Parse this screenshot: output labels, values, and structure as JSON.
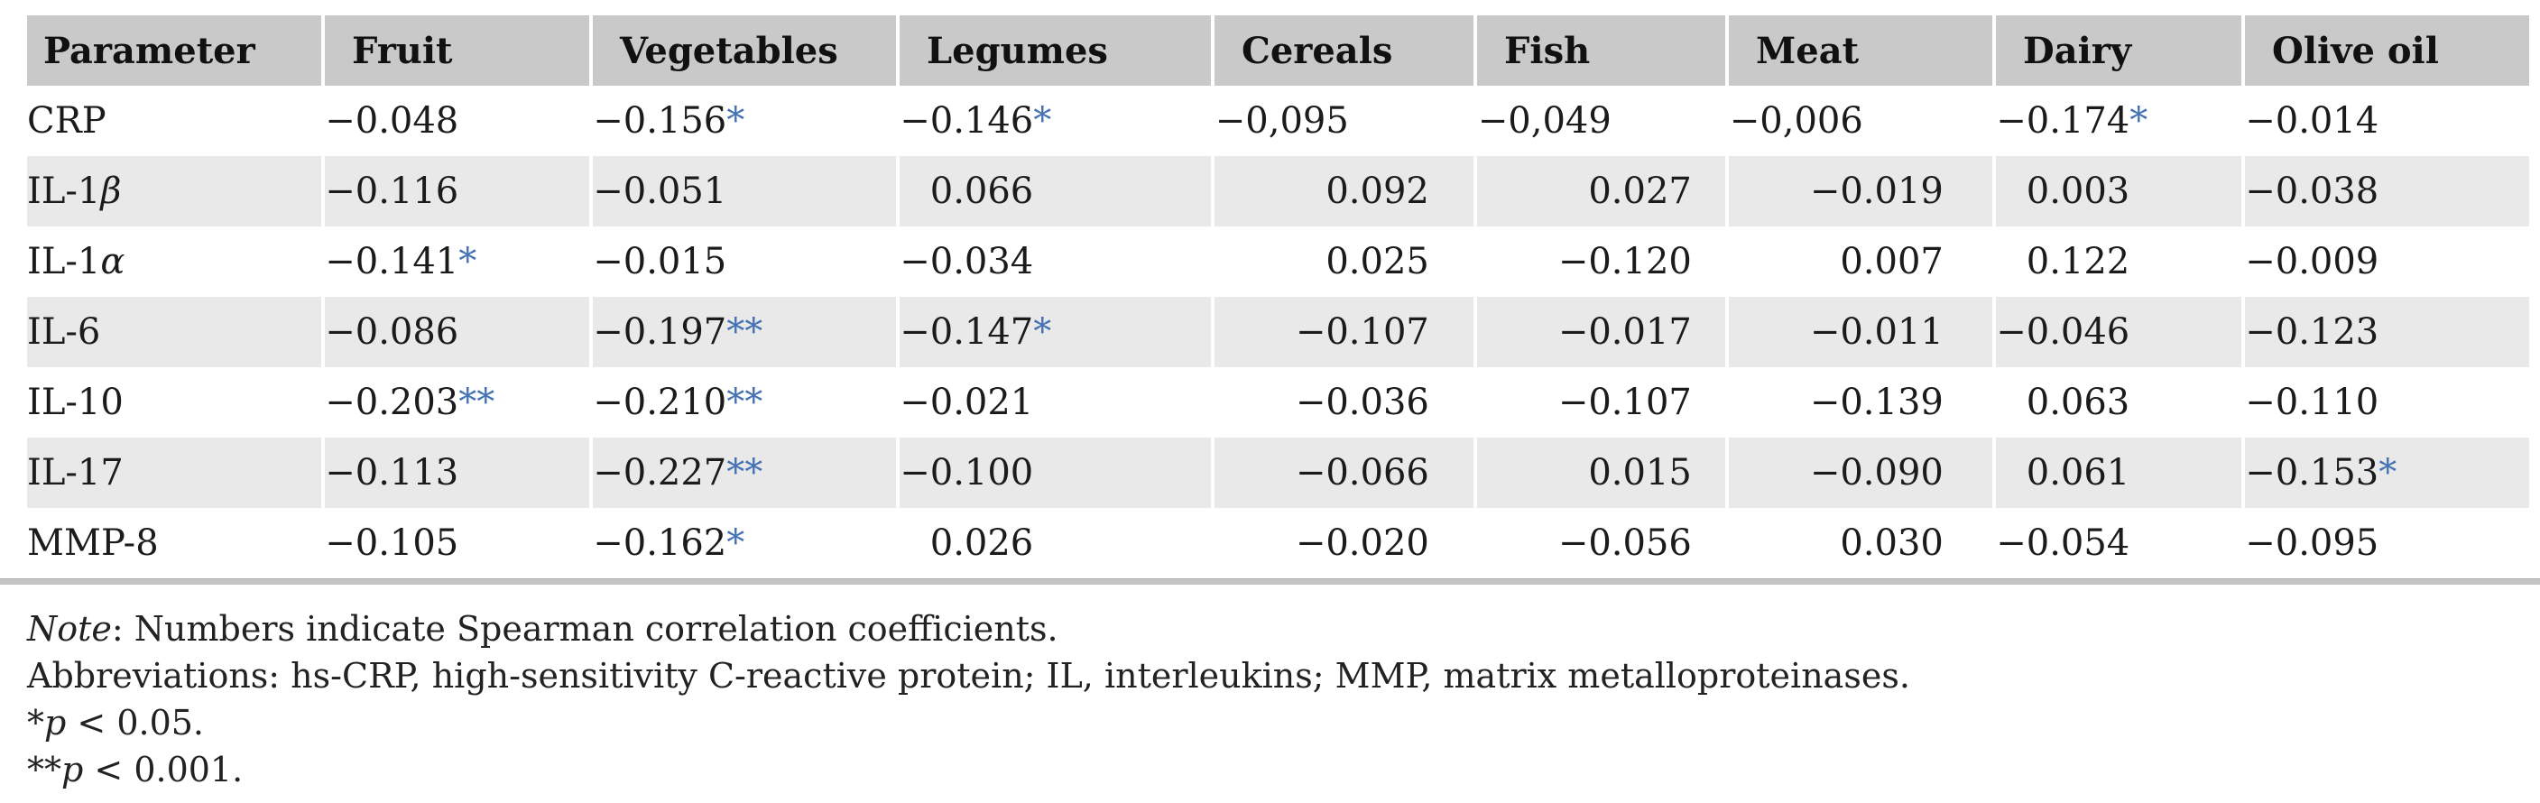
{
  "table": {
    "columns": [
      "Parameter",
      "Fruit",
      "Vegetables",
      "Legumes",
      "Cereals",
      "Fish",
      "Meat",
      "Dairy",
      "Olive oil"
    ],
    "rows": [
      {
        "label": "CRP",
        "values": [
          "−0.048",
          "−0.156*",
          "−0.146*",
          "−0,095",
          "−0,049",
          "−0,006",
          "−0.174*",
          "−0.014"
        ]
      },
      {
        "label": "IL-1β",
        "values": [
          "−0.116",
          "−0.051",
          "0.066",
          "0.092",
          "0.027",
          "−0.019",
          "0.003",
          "−0.038"
        ]
      },
      {
        "label": "IL-1α",
        "values": [
          "−0.141*",
          "−0.015",
          "−0.034",
          "0.025",
          "−0.120",
          "0.007",
          "0.122",
          "−0.009"
        ]
      },
      {
        "label": "IL-6",
        "values": [
          "−0.086",
          "−0.197**",
          "−0.147*",
          "−0.107",
          "−0.017",
          "−0.011",
          "−0.046",
          "−0.123"
        ]
      },
      {
        "label": "IL-10",
        "values": [
          "−0.203**",
          "−0.210**",
          "−0.021",
          "−0.036",
          "−0.107",
          "−0.139",
          "0.063",
          "−0.110"
        ]
      },
      {
        "label": "IL-17",
        "values": [
          "−0.113",
          "−0.227**",
          "−0.100",
          "−0.066",
          "0.015",
          "−0.090",
          "0.061",
          "−0.153*"
        ]
      },
      {
        "label": "MMP-8",
        "values": [
          "−0.105",
          "−0.162*",
          "0.026",
          "−0.020",
          "−0.056",
          "0.030",
          "−0.054",
          "−0.095"
        ]
      }
    ]
  },
  "notes": {
    "note_label": "Note",
    "note_text": ": Numbers indicate Spearman correlation coefficients.",
    "abbreviations": "Abbreviations: hs-CRP, high-sensitivity C-reactive protein; IL, interleukins; MMP, matrix metalloproteinases.",
    "sig1_marker": "*",
    "sig1_var": "p",
    "sig1_rest": " < 0.05.",
    "sig2_marker": "**",
    "sig2_var": "p",
    "sig2_rest": " < 0.001."
  },
  "colors": {
    "header_bg": "#c9c9c9",
    "row_alt_bg": "#e9e9e9",
    "text": "#1b1b1b",
    "asterisk_blue": "#4472b4",
    "rule_gray": "#c4c4c4"
  }
}
